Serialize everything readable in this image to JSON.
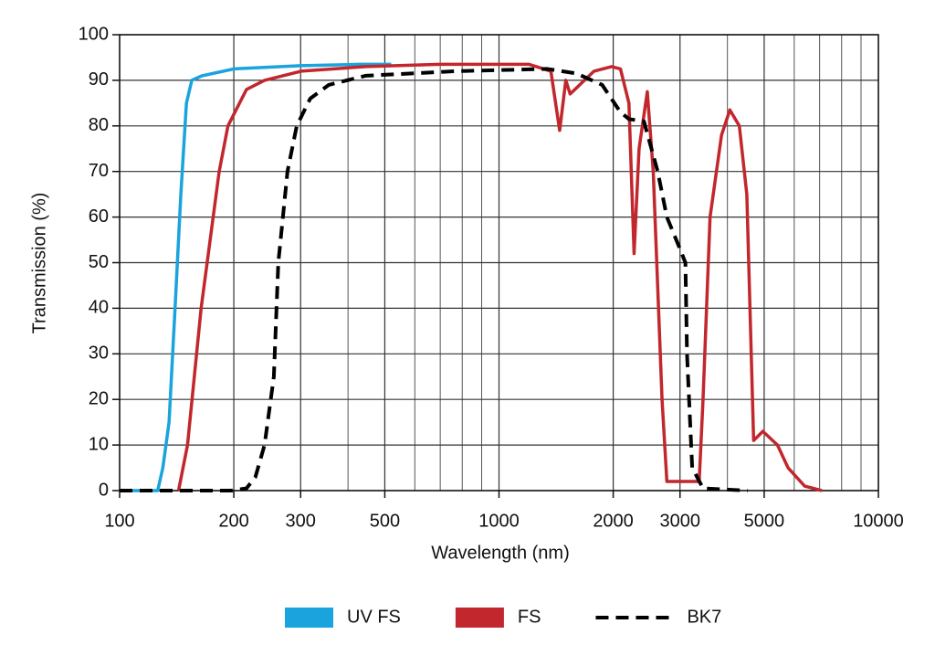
{
  "chart_data": {
    "type": "line",
    "xlabel": "Wavelength (nm)",
    "ylabel": "Transmission (%)",
    "xscale": "log",
    "xlim": [
      100,
      10000
    ],
    "ylim": [
      0,
      100
    ],
    "xticks": [
      100,
      200,
      300,
      500,
      1000,
      2000,
      3000,
      5000,
      10000
    ],
    "xgrid_minor": [
      400,
      600,
      700,
      800,
      900,
      4000,
      6000,
      7000,
      8000,
      9000
    ],
    "yticks": [
      0,
      10,
      20,
      30,
      40,
      50,
      60,
      70,
      80,
      90,
      100
    ],
    "grid": true,
    "legend": "bottom",
    "series": [
      {
        "name": "UV FS",
        "color": "#1aa3dc",
        "style": "solid",
        "x": [
          100,
          126,
          130,
          135,
          140,
          145,
          150,
          155,
          165,
          200,
          300,
          430,
          520
        ],
        "values": [
          0,
          0,
          5,
          15,
          40,
          65,
          85,
          90,
          91,
          92.5,
          93.2,
          93.5,
          93.5
        ]
      },
      {
        "name": "FS",
        "color": "#c1272d",
        "style": "solid",
        "x": [
          143,
          151,
          164,
          183,
          193,
          216,
          241,
          301,
          445,
          700,
          1200,
          1370,
          1445,
          1500,
          1540,
          1780,
          1980,
          2090,
          2200,
          2270,
          2340,
          2460,
          2550,
          2690,
          2770,
          3370,
          3450,
          3600,
          3860,
          4060,
          4300,
          4500,
          4690,
          4960,
          5420,
          5780,
          6390,
          7090
        ],
        "values": [
          0,
          10,
          40,
          70,
          80,
          88,
          90,
          92,
          93,
          93.5,
          93.5,
          92,
          79,
          90,
          87,
          92,
          93,
          92.5,
          85,
          52,
          75,
          87.5,
          70,
          20,
          2,
          2,
          20,
          60,
          78,
          83.5,
          80,
          65,
          11,
          13,
          10,
          5,
          1,
          0
        ]
      },
      {
        "name": "BK7",
        "color": "#000000",
        "style": "dashed",
        "x": [
          100,
          197,
          216,
          228,
          241,
          255,
          262,
          277,
          293,
          318,
          356,
          445,
          770,
          1340,
          1600,
          1870,
          2090,
          2200,
          2410,
          2620,
          2770,
          3000,
          3100,
          3130,
          3230,
          3450,
          4520
        ],
        "values": [
          0,
          0,
          0.5,
          3,
          10,
          25,
          50,
          70,
          80,
          86,
          89,
          91,
          92,
          92.5,
          91.5,
          89,
          83,
          81.5,
          81,
          70,
          60,
          53,
          50,
          30,
          5,
          0.5,
          0
        ]
      }
    ]
  }
}
